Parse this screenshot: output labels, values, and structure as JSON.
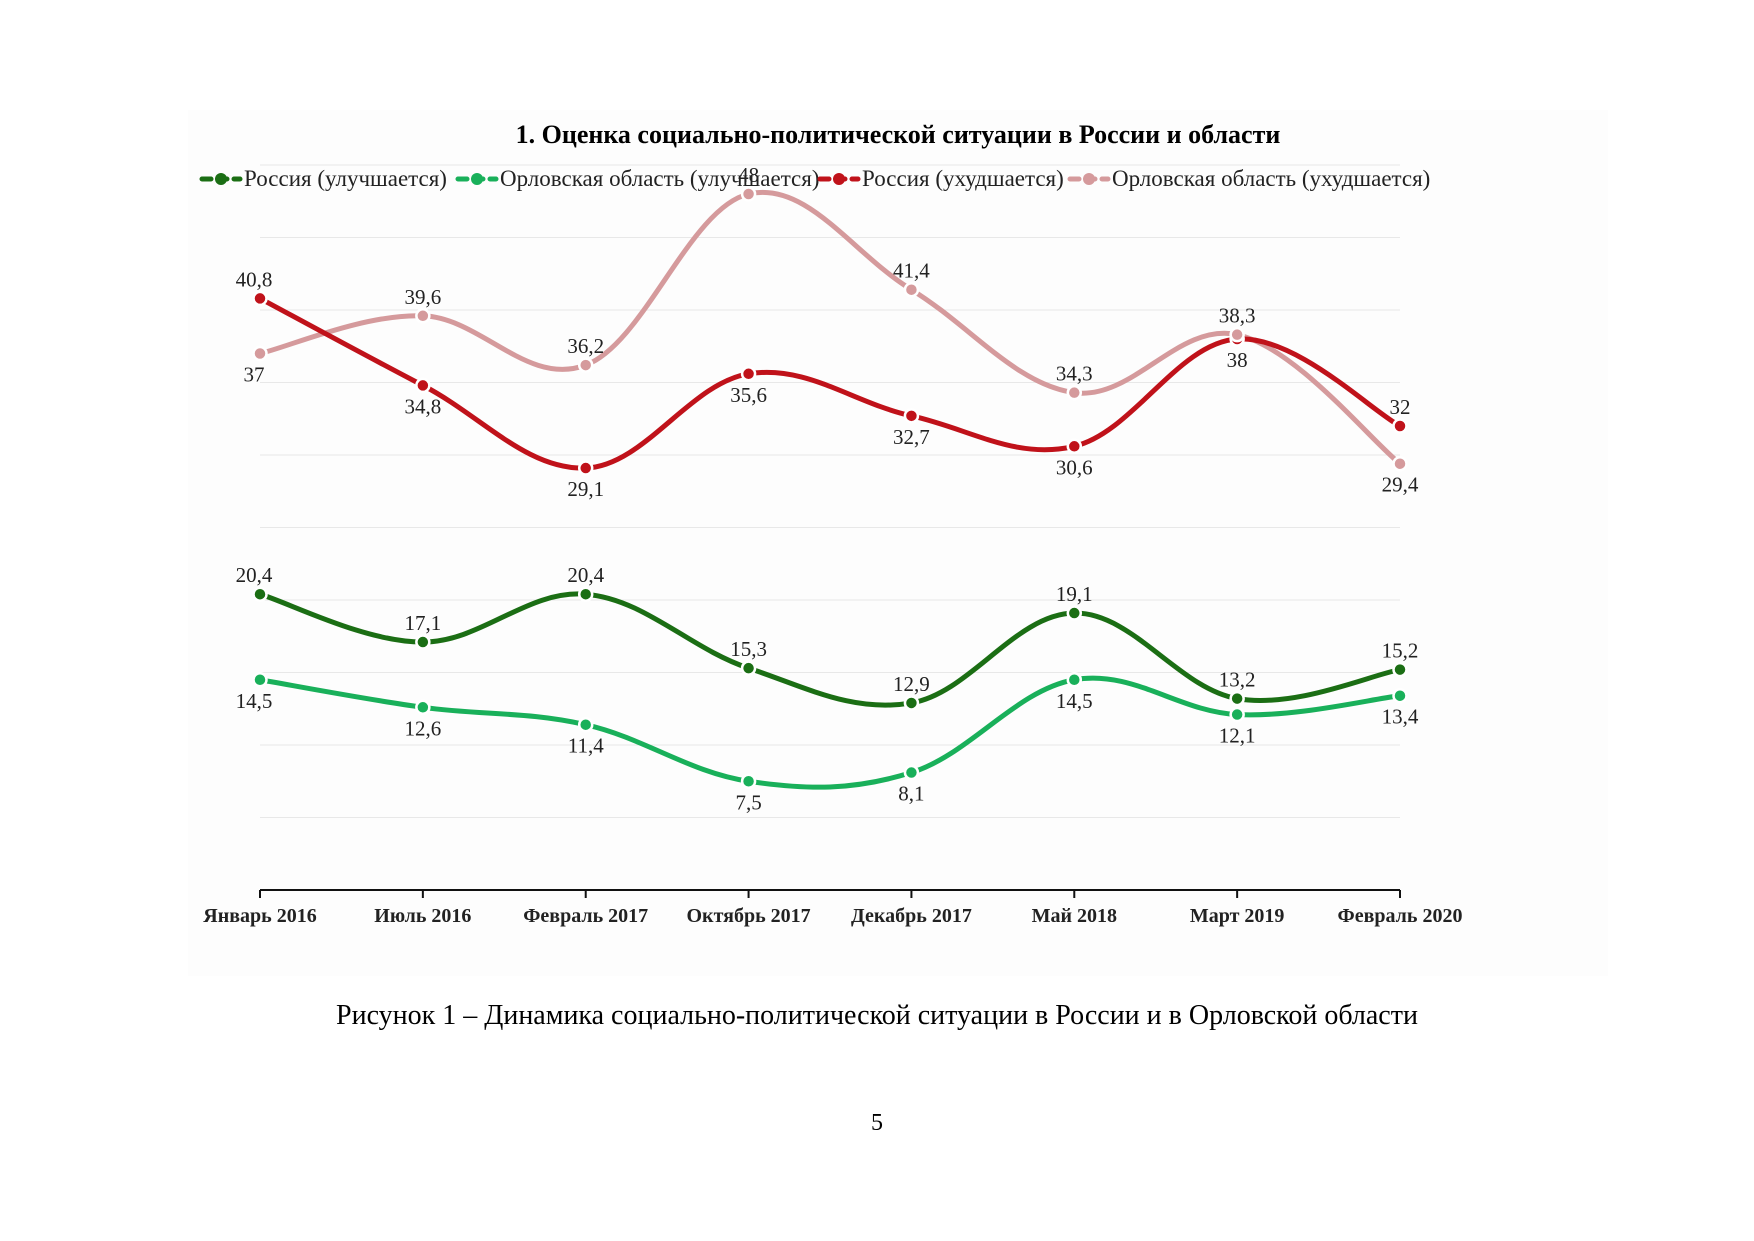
{
  "chart_data": {
    "type": "line",
    "title": "1. Оценка социально-политической ситуации в России и области",
    "categories": [
      "Январь 2016",
      "Июль 2016",
      "Февраль 2017",
      "Октябрь 2017",
      "Декабрь 2017",
      "Май 2018",
      "Март 2019",
      "Февраль 2020"
    ],
    "ylim": [
      0,
      50
    ],
    "grid": true,
    "legend_position": "top",
    "xlabel": "",
    "ylabel": "",
    "series": [
      {
        "name": "Россия (улучшается)",
        "color": "#1b6e14",
        "label_side": [
          "above",
          "above",
          "above",
          "above",
          "above",
          "above",
          "above",
          "above"
        ],
        "values": [
          20.4,
          17.1,
          20.4,
          15.3,
          12.9,
          19.1,
          13.2,
          15.2
        ],
        "labels": [
          "20,4",
          "17,1",
          "20,4",
          "15,3",
          "12,9",
          "19,1",
          "13,2",
          "15,2"
        ]
      },
      {
        "name": "Орловская область (улучшается)",
        "color": "#19b05a",
        "label_side": [
          "below",
          "below",
          "below",
          "below",
          "below",
          "below",
          "below",
          "below"
        ],
        "values": [
          14.5,
          12.6,
          11.4,
          7.5,
          8.1,
          14.5,
          12.1,
          13.4
        ],
        "labels": [
          "14,5",
          "12,6",
          "11,4",
          "7,5",
          "8,1",
          "14,5",
          "12,1",
          "13,4"
        ]
      },
      {
        "name": "Россия (ухудшается)",
        "color": "#c0121a",
        "label_side": [
          "above",
          "below",
          "below",
          "below",
          "below",
          "below",
          "below",
          "above"
        ],
        "values": [
          40.8,
          34.8,
          29.1,
          35.6,
          32.7,
          30.6,
          38.0,
          32.0
        ],
        "labels": [
          "40,8",
          "34,8",
          "29,1",
          "35,6",
          "32,7",
          "30,6",
          "38",
          "32"
        ]
      },
      {
        "name": "Орловская область (ухудшается)",
        "color": "#d59a9c",
        "label_side": [
          "below",
          "above",
          "above",
          "above",
          "above",
          "above",
          "above",
          "below"
        ],
        "values": [
          37.0,
          39.6,
          36.2,
          48.0,
          41.4,
          34.3,
          38.3,
          29.4
        ],
        "labels": [
          "37",
          "39,6",
          "36,2",
          "48",
          "41,4",
          "34,3",
          "38,3",
          "29,4"
        ]
      }
    ]
  },
  "caption": "Рисунок 1 – Динамика социально-политической ситуации в России и в Орловской области",
  "page_number": "5"
}
